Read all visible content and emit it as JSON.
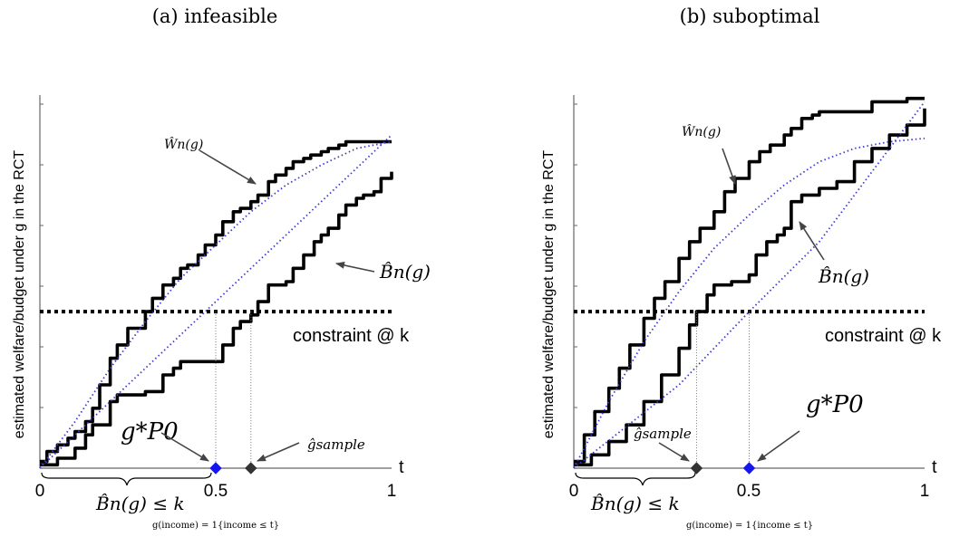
{
  "chart_data": [
    {
      "type": "line",
      "caption": "(a) infeasible",
      "ylabel": "estimated welfare/budget under g in the RCT",
      "xlabel": "t",
      "xticks": [
        "0",
        "0.5",
        "1"
      ],
      "xlim": [
        0,
        1
      ],
      "constraint_label": "constraint @ k",
      "constraint_level": 0.47,
      "brace_label": "B̂n(g) ≤ k",
      "rule_label": "g(income) = 1{income ≤ t}",
      "annotations": {
        "w_label": "Ŵn(g)",
        "b_label": "B̂n(g)",
        "gstar_label": "g*P0",
        "gsample_label": "ĝsample"
      },
      "g_star": 0.5,
      "g_sample": 0.6,
      "series": [
        {
          "key": "W",
          "role": "estimated",
          "x": [
            0,
            0.02,
            0.05,
            0.08,
            0.1,
            0.13,
            0.15,
            0.17,
            0.2,
            0.22,
            0.25,
            0.27,
            0.3,
            0.32,
            0.35,
            0.38,
            0.4,
            0.42,
            0.45,
            0.47,
            0.5,
            0.52,
            0.55,
            0.57,
            0.6,
            0.62,
            0.65,
            0.67,
            0.7,
            0.72,
            0.75,
            0.77,
            0.8,
            0.82,
            0.85,
            0.87,
            0.9,
            1
          ],
          "y": [
            0.02,
            0.05,
            0.07,
            0.09,
            0.11,
            0.14,
            0.18,
            0.25,
            0.33,
            0.37,
            0.42,
            0.42,
            0.47,
            0.51,
            0.55,
            0.57,
            0.6,
            0.61,
            0.64,
            0.67,
            0.7,
            0.74,
            0.77,
            0.78,
            0.8,
            0.82,
            0.86,
            0.88,
            0.9,
            0.92,
            0.93,
            0.94,
            0.95,
            0.96,
            0.97,
            0.98,
            0.98,
            0.98
          ]
        },
        {
          "key": "B",
          "role": "estimated",
          "x": [
            0,
            0.05,
            0.1,
            0.13,
            0.15,
            0.2,
            0.22,
            0.25,
            0.3,
            0.35,
            0.38,
            0.4,
            0.45,
            0.5,
            0.52,
            0.55,
            0.57,
            0.6,
            0.62,
            0.65,
            0.7,
            0.72,
            0.75,
            0.78,
            0.8,
            0.82,
            0.85,
            0.87,
            0.9,
            0.92,
            0.95,
            0.97,
            1
          ],
          "y": [
            0.01,
            0.03,
            0.06,
            0.1,
            0.13,
            0.2,
            0.22,
            0.22,
            0.23,
            0.28,
            0.3,
            0.32,
            0.32,
            0.32,
            0.37,
            0.42,
            0.44,
            0.46,
            0.5,
            0.55,
            0.56,
            0.6,
            0.64,
            0.68,
            0.7,
            0.72,
            0.76,
            0.79,
            0.81,
            0.82,
            0.83,
            0.87,
            0.89
          ]
        },
        {
          "key": "W0",
          "role": "population",
          "x": [
            0,
            0.1,
            0.2,
            0.3,
            0.4,
            0.5,
            0.6,
            0.7,
            0.8,
            0.9,
            1
          ],
          "y": [
            0,
            0.14,
            0.3,
            0.44,
            0.57,
            0.67,
            0.77,
            0.85,
            0.91,
            0.96,
            0.98
          ]
        },
        {
          "key": "B0",
          "role": "population",
          "x": [
            0,
            0.25,
            0.5,
            0.75,
            1
          ],
          "y": [
            0,
            0.25,
            0.5,
            0.75,
            1
          ]
        }
      ]
    },
    {
      "type": "line",
      "caption": "(b) suboptimal",
      "ylabel": "estimated welfare/budget under g in the RCT",
      "xlabel": "t",
      "xticks": [
        "0",
        "0.5",
        "1"
      ],
      "xlim": [
        0,
        1
      ],
      "constraint_label": "constraint @ k",
      "constraint_level": 0.47,
      "brace_label": "B̂n(g) ≤ k",
      "rule_label": "g(income) = 1{income ≤ t}",
      "annotations": {
        "w_label": "Ŵn(g)",
        "b_label": "B̂n(g)",
        "gstar_label": "g*P0",
        "gsample_label": "ĝsample"
      },
      "g_star": 0.5,
      "g_sample": 0.35,
      "series": [
        {
          "key": "W",
          "role": "estimated",
          "x": [
            0,
            0.03,
            0.06,
            0.1,
            0.13,
            0.16,
            0.2,
            0.23,
            0.26,
            0.3,
            0.33,
            0.36,
            0.4,
            0.43,
            0.46,
            0.5,
            0.53,
            0.56,
            0.6,
            0.62,
            0.65,
            0.68,
            0.7,
            0.75,
            0.8,
            0.85,
            0.9,
            0.95,
            1
          ],
          "y": [
            0.02,
            0.1,
            0.17,
            0.24,
            0.3,
            0.37,
            0.45,
            0.51,
            0.56,
            0.63,
            0.68,
            0.72,
            0.77,
            0.83,
            0.87,
            0.92,
            0.95,
            0.97,
            1.0,
            1.02,
            1.05,
            1.06,
            1.07,
            1.07,
            1.07,
            1.1,
            1.1,
            1.11,
            1.11
          ]
        },
        {
          "key": "B",
          "role": "estimated",
          "x": [
            0,
            0.05,
            0.1,
            0.15,
            0.2,
            0.25,
            0.3,
            0.33,
            0.35,
            0.38,
            0.4,
            0.45,
            0.5,
            0.52,
            0.55,
            0.58,
            0.6,
            0.62,
            0.65,
            0.7,
            0.75,
            0.8,
            0.85,
            0.9,
            0.95,
            1
          ],
          "y": [
            0.01,
            0.04,
            0.08,
            0.13,
            0.2,
            0.28,
            0.36,
            0.43,
            0.47,
            0.52,
            0.55,
            0.56,
            0.58,
            0.64,
            0.68,
            0.7,
            0.72,
            0.8,
            0.82,
            0.84,
            0.86,
            0.92,
            0.96,
            1.0,
            1.03,
            1.08
          ]
        },
        {
          "key": "W0",
          "role": "population",
          "x": [
            0,
            0.1,
            0.2,
            0.3,
            0.4,
            0.5,
            0.6,
            0.7,
            0.8,
            0.9,
            1
          ],
          "y": [
            0,
            0.2,
            0.38,
            0.53,
            0.66,
            0.76,
            0.85,
            0.92,
            0.96,
            0.98,
            0.99
          ]
        },
        {
          "key": "B0",
          "role": "population",
          "x": [
            0,
            0.3,
            0.5,
            0.7,
            1
          ],
          "y": [
            0,
            0.25,
            0.47,
            0.68,
            1.1
          ]
        }
      ]
    }
  ],
  "colors": {
    "estimated": "#000000",
    "population": "#3b3bd6",
    "gstar_marker": "#1515f0",
    "gsample_marker": "#333333",
    "gstar_label": "#5a5ae0"
  },
  "icons": {
    "gstar_marker": "diamond",
    "gsample_marker": "diamond",
    "arrow": "arrow"
  }
}
